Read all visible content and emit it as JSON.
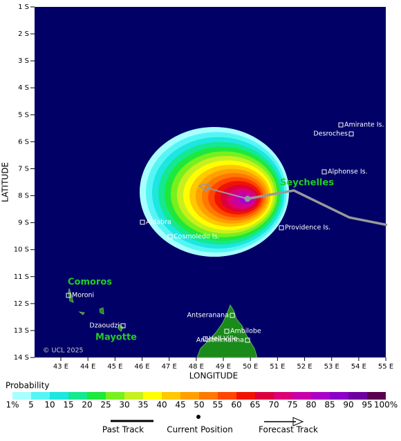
{
  "map": {
    "y_label": "LATITUDE",
    "x_label": "LONGITUDE",
    "lat_ticks": [
      "1 S",
      "2 S",
      "3 S",
      "4 S",
      "5 S",
      "6 S",
      "7 S",
      "8 S",
      "9 S",
      "10 S",
      "11 S",
      "12 S",
      "13 S",
      "14 S"
    ],
    "lon_ticks": [
      "43 E",
      "44 E",
      "45 E",
      "46 E",
      "47 E",
      "48 E",
      "49 E",
      "50 E",
      "51 E",
      "52 E",
      "53 E",
      "54 E",
      "55 E"
    ],
    "places": [
      "Amirante Is.",
      "Desroches",
      "Alphonse Is.",
      "Providence Is.",
      "Aldabra",
      "Cosmoledo Is.",
      "Moroni",
      "Dzaoudzi",
      "Antseranana",
      "Ambilobe",
      "Hell-Ville",
      "Antsohimarina"
    ],
    "regions": [
      "Seychelles",
      "Comoros",
      "Mayotte"
    ],
    "copyright": "© UCL 2025"
  },
  "legend": {
    "title": "Probability",
    "colors": [
      "#a8ffff",
      "#55f5f5",
      "#1ee6e0",
      "#14e890",
      "#1ee83c",
      "#78f01e",
      "#c8f01e",
      "#ffff00",
      "#ffc800",
      "#ffa000",
      "#ff7800",
      "#ff4600",
      "#f01400",
      "#dc003c",
      "#dc0078",
      "#c800aa",
      "#aa00c8",
      "#8c00c8",
      "#6e00a0",
      "#5a0050"
    ],
    "labels": [
      "1%",
      "5",
      "10",
      "15",
      "20",
      "25",
      "30",
      "35",
      "40",
      "45",
      "50",
      "55",
      "60",
      "65",
      "70",
      "75",
      "80",
      "85",
      "90",
      "95",
      "100%"
    ],
    "items": [
      "Past Track",
      "Current Position",
      "Forecast Track"
    ]
  }
}
